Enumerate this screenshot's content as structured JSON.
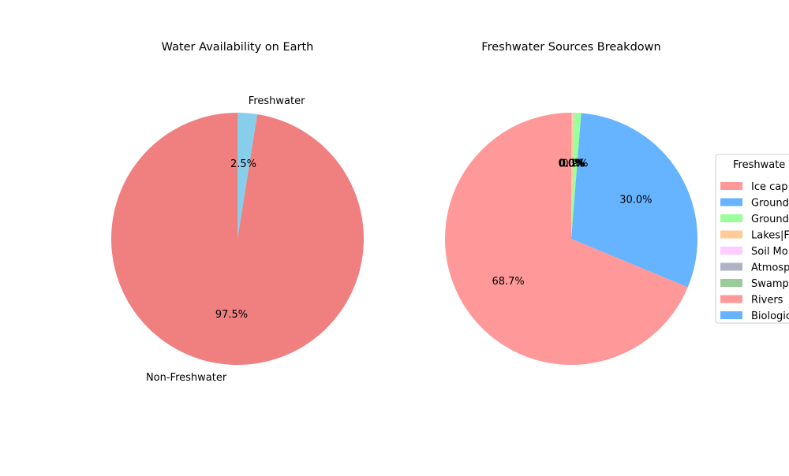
{
  "chart_data": [
    {
      "type": "pie",
      "title": "Water Availability on Earth",
      "start_angle_deg": 90,
      "direction": "counterclockwise",
      "labels_outside": true,
      "slices": [
        {
          "label": "Non-Freshwater",
          "value": 97.5,
          "pct_label": "97.5%",
          "color": "#f08080"
        },
        {
          "label": "Freshwater",
          "value": 2.5,
          "pct_label": "2.5%",
          "color": "#87ceeb"
        }
      ]
    },
    {
      "type": "pie",
      "title": "Freshwater Sources Breakdown",
      "start_angle_deg": 90,
      "direction": "counterclockwise",
      "legend_title": "Freshwate",
      "legend_placement": "right",
      "slices": [
        {
          "label": "Ice cap",
          "value": 68.7,
          "pct_label": "68.7%",
          "color": "#ff9999"
        },
        {
          "label": "Ground",
          "value": 30.0,
          "pct_label": "30.0%",
          "color": "#66b3ff"
        },
        {
          "label": "Ground",
          "value": 0.86,
          "pct_label": "0.9%",
          "color": "#99ff99"
        },
        {
          "label": "Lakes|F",
          "value": 0.26,
          "pct_label": "0.3%",
          "color": "#ffcc99"
        },
        {
          "label": "Soil Mo",
          "value": 0.05,
          "pct_label": "0.0%",
          "color": "#ffccff"
        },
        {
          "label": "Atmosp",
          "value": 0.04,
          "pct_label": "0.0%",
          "color": "#b0b3c8"
        },
        {
          "label": "Swamp",
          "value": 0.03,
          "pct_label": "0.0%",
          "color": "#99cc99"
        },
        {
          "label": "Rivers",
          "value": 0.006,
          "pct_label": "0.0%",
          "color": "#ff9999"
        },
        {
          "label": "Biologic",
          "value": 0.003,
          "pct_label": "0.0%",
          "color": "#66b3ff"
        }
      ]
    }
  ]
}
